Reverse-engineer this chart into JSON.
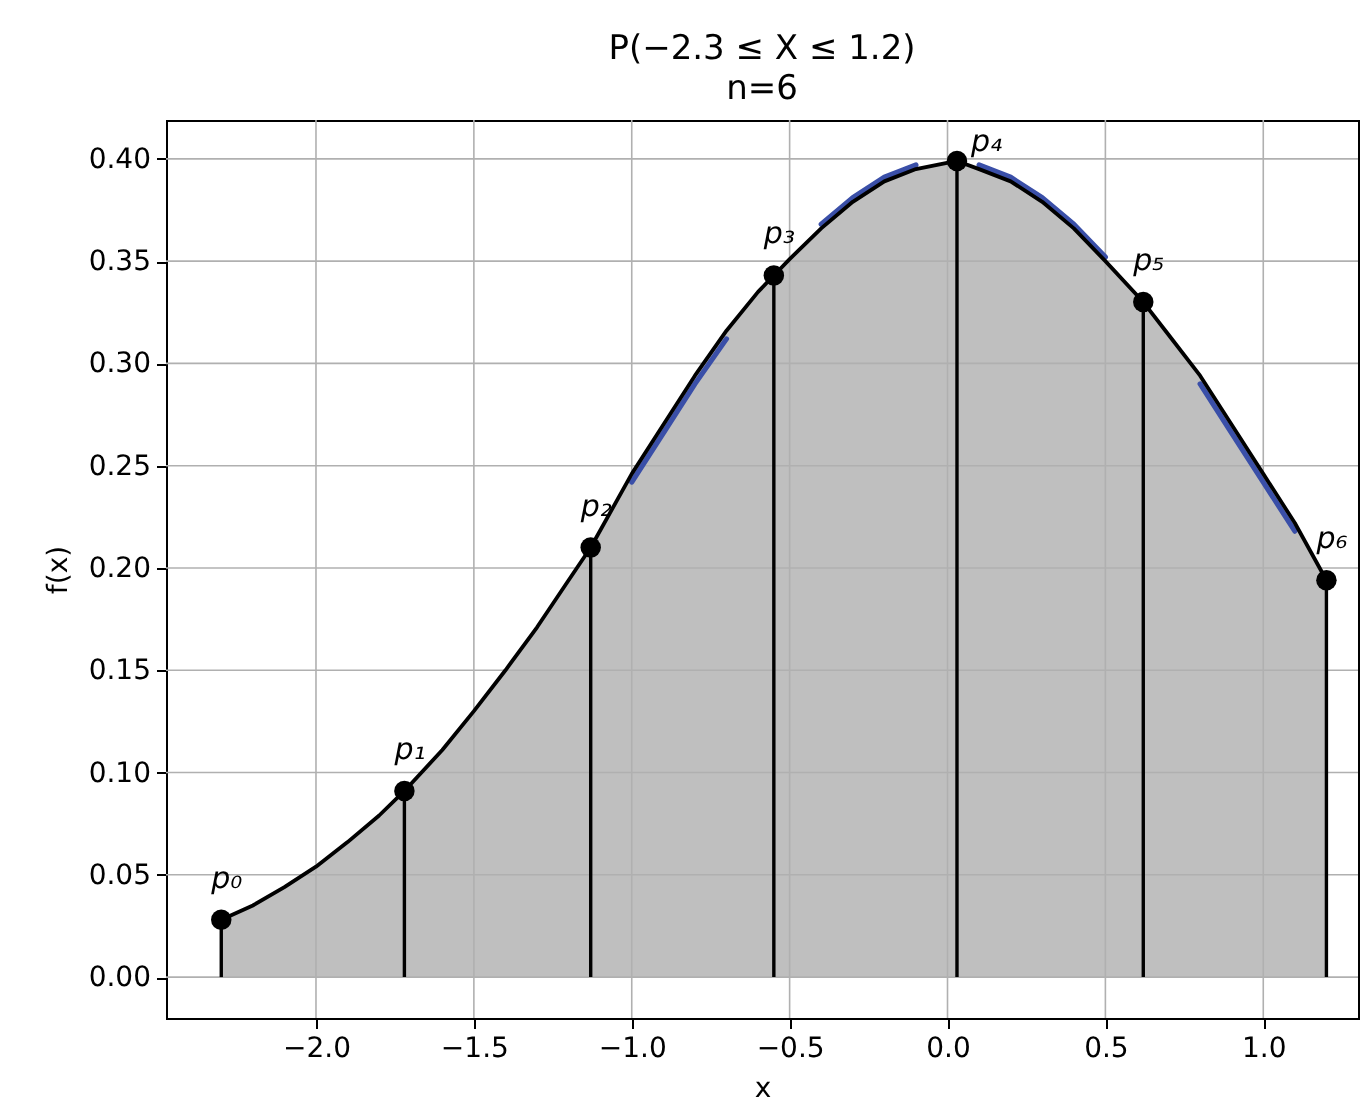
{
  "chart_data": {
    "type": "line",
    "title": "P(−2.3 ≤ X ≤ 1.2)",
    "subtitle": "n=6",
    "xlabel": "x",
    "ylabel": "f(x)",
    "xlim": [
      -2.475,
      1.3
    ],
    "ylim": [
      -0.02,
      0.419
    ],
    "xticks": [
      {
        "value": -2.0,
        "label": "−2.0"
      },
      {
        "value": -1.5,
        "label": "−1.5"
      },
      {
        "value": -1.0,
        "label": "−1.0"
      },
      {
        "value": -0.5,
        "label": "−0.5"
      },
      {
        "value": 0.0,
        "label": "0.0"
      },
      {
        "value": 0.5,
        "label": "0.5"
      },
      {
        "value": 1.0,
        "label": "1.0"
      }
    ],
    "yticks": [
      {
        "value": 0.0,
        "label": "0.00"
      },
      {
        "value": 0.05,
        "label": "0.05"
      },
      {
        "value": 0.1,
        "label": "0.10"
      },
      {
        "value": 0.15,
        "label": "0.15"
      },
      {
        "value": 0.2,
        "label": "0.20"
      },
      {
        "value": 0.25,
        "label": "0.25"
      },
      {
        "value": 0.3,
        "label": "0.30"
      },
      {
        "value": 0.35,
        "label": "0.35"
      },
      {
        "value": 0.4,
        "label": "0.40"
      }
    ],
    "grid": true,
    "series": [
      {
        "color": "#3a4fa8",
        "x": [
          -1.0,
          -0.9,
          -0.8,
          -0.7,
          -0.6,
          -0.4,
          -0.3,
          -0.2,
          -0.1,
          0.0,
          0.1,
          0.2,
          0.3,
          0.4,
          0.5,
          0.6,
          0.8,
          0.9,
          1.0,
          1.1
        ],
        "values": [
          0.242,
          0.266,
          0.29,
          0.312,
          null,
          0.368,
          0.381,
          0.391,
          0.397,
          null,
          0.397,
          0.391,
          0.381,
          0.368,
          0.352,
          null,
          0.29,
          0.266,
          0.242,
          0.218
        ]
      },
      {
        "color": "#000000",
        "x": [
          -2.3,
          -2.2,
          -2.1,
          -2.0,
          -1.9,
          -1.8,
          -1.72,
          -1.6,
          -1.5,
          -1.4,
          -1.3,
          -1.2,
          -1.13,
          -1.0,
          -0.9,
          -0.8,
          -0.7,
          -0.6,
          -0.55,
          -0.5,
          -0.4,
          -0.3,
          -0.2,
          -0.1,
          0.03,
          0.1,
          0.2,
          0.3,
          0.4,
          0.5,
          0.62,
          0.7,
          0.8,
          0.9,
          1.0,
          1.1,
          1.2
        ],
        "values": [
          0.028,
          0.035,
          0.044,
          0.054,
          0.066,
          0.079,
          0.091,
          0.111,
          0.13,
          0.15,
          0.171,
          0.194,
          0.21,
          0.246,
          0.27,
          0.294,
          0.316,
          0.335,
          0.343,
          0.351,
          0.366,
          0.379,
          0.389,
          0.395,
          0.399,
          0.395,
          0.389,
          0.379,
          0.366,
          0.35,
          0.33,
          0.314,
          0.294,
          0.27,
          0.246,
          0.222,
          0.194
        ],
        "lower": [
          0,
          0,
          0,
          0,
          0,
          0,
          0,
          0,
          0,
          0,
          0,
          0,
          0,
          0,
          0,
          0,
          0,
          0,
          0,
          0,
          0,
          0,
          0,
          0,
          0,
          0,
          0,
          0,
          0,
          0,
          0,
          0,
          0,
          0,
          0,
          0,
          0
        ],
        "upper": [
          0.028,
          0.035,
          0.044,
          0.054,
          0.066,
          0.079,
          0.091,
          0.111,
          0.13,
          0.15,
          0.171,
          0.194,
          0.21,
          0.246,
          0.27,
          0.294,
          0.316,
          0.335,
          0.343,
          0.351,
          0.366,
          0.379,
          0.389,
          0.395,
          0.399,
          0.395,
          0.389,
          0.379,
          0.366,
          0.35,
          0.33,
          0.314,
          0.294,
          0.27,
          0.246,
          0.222,
          0.194
        ]
      },
      {
        "type": "lollipop",
        "color": "#000000",
        "marker": "circle",
        "x": [
          -2.3,
          -1.72,
          -1.13,
          -0.55,
          0.03,
          0.62,
          1.2
        ],
        "values": [
          0.028,
          0.091,
          0.21,
          0.343,
          0.399,
          0.33,
          0.194
        ]
      }
    ],
    "annotations": [
      {
        "text": "p₀",
        "x": -2.3,
        "y": 0.028
      },
      {
        "text": "p₁",
        "x": -1.72,
        "y": 0.091
      },
      {
        "text": "p₂",
        "x": -1.13,
        "y": 0.21
      },
      {
        "text": "p₃",
        "x": -0.55,
        "y": 0.343
      },
      {
        "text": "p₄",
        "x": 0.03,
        "y": 0.399
      },
      {
        "text": "p₅",
        "x": 0.62,
        "y": 0.33
      },
      {
        "text": "p₆",
        "x": 1.2,
        "y": 0.194
      }
    ]
  }
}
